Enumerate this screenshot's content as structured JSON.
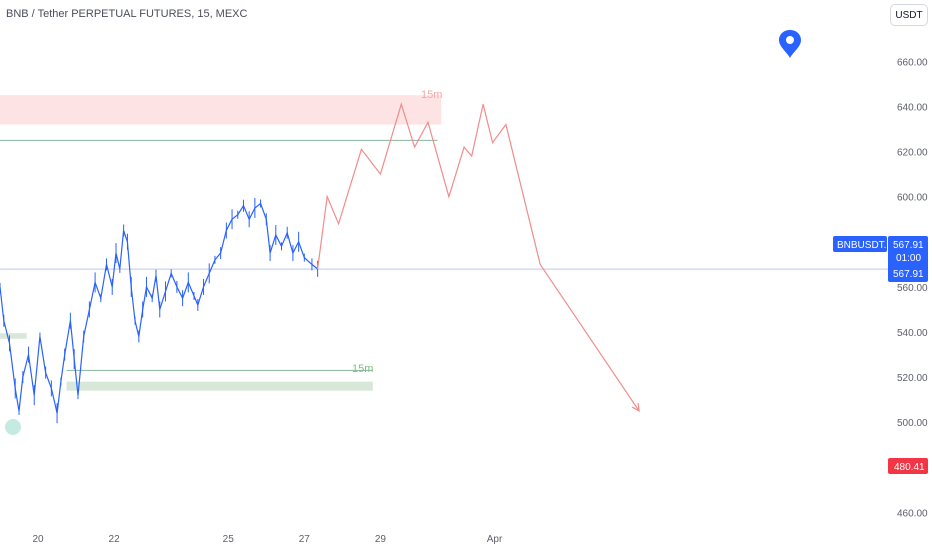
{
  "header": {
    "title": "BNB / Tether PERPETUAL FUTURES, 15, MEXC",
    "currency_button": "USDT"
  },
  "price_tag": {
    "symbol": "BNBUSDT.P",
    "price": "567.91",
    "countdown": "01:00",
    "price_repeat": "567.91",
    "color": "#2962ff"
  },
  "target_tag": {
    "price": "480.41",
    "color": "#f23645"
  },
  "zones": {
    "red_label": "15m",
    "green_label": "15m"
  },
  "chart_data": {
    "type": "line",
    "symbol": "BNBUSDT.P",
    "timeframe": "15",
    "exchange": "MEXC",
    "y_axis": {
      "ticks": [
        460,
        480,
        500,
        520,
        540,
        560,
        580,
        600,
        620,
        640,
        660
      ],
      "tick_labels": [
        "460.00",
        "480.00",
        "500.00",
        "520.00",
        "540.00",
        "560.00",
        "580.00",
        "600.00",
        "620.00",
        "640.00",
        "660.00"
      ],
      "range": [
        450,
        685
      ]
    },
    "x_axis": {
      "ticks": [
        {
          "label": "20",
          "day": 20
        },
        {
          "label": "22",
          "day": 22
        },
        {
          "label": "25",
          "day": 25
        },
        {
          "label": "27",
          "day": 27
        },
        {
          "label": "29",
          "day": 29
        },
        {
          "label": "Apr",
          "day": 32
        }
      ],
      "range": [
        19,
        43.5
      ]
    },
    "price_series": {
      "name": "BNBUSDT.P",
      "color": "#2962ff",
      "points": [
        [
          19.0,
          560
        ],
        [
          19.1,
          545
        ],
        [
          19.25,
          535
        ],
        [
          19.4,
          515
        ],
        [
          19.5,
          505
        ],
        [
          19.6,
          520
        ],
        [
          19.75,
          530
        ],
        [
          19.9,
          512
        ],
        [
          20.05,
          538
        ],
        [
          20.2,
          522
        ],
        [
          20.35,
          515
        ],
        [
          20.5,
          504
        ],
        [
          20.6,
          518
        ],
        [
          20.7,
          530
        ],
        [
          20.85,
          545
        ],
        [
          20.95,
          528
        ],
        [
          21.05,
          512
        ],
        [
          21.2,
          538
        ],
        [
          21.35,
          550
        ],
        [
          21.5,
          562
        ],
        [
          21.65,
          555
        ],
        [
          21.8,
          570
        ],
        [
          21.95,
          560
        ],
        [
          22.05,
          575
        ],
        [
          22.15,
          568
        ],
        [
          22.25,
          585
        ],
        [
          22.35,
          580
        ],
        [
          22.45,
          560
        ],
        [
          22.55,
          545
        ],
        [
          22.65,
          538
        ],
        [
          22.75,
          550
        ],
        [
          22.85,
          560
        ],
        [
          23.0,
          555
        ],
        [
          23.1,
          565
        ],
        [
          23.2,
          550
        ],
        [
          23.35,
          558
        ],
        [
          23.5,
          566
        ],
        [
          23.65,
          560
        ],
        [
          23.8,
          555
        ],
        [
          23.95,
          562
        ],
        [
          24.1,
          556
        ],
        [
          24.2,
          552
        ],
        [
          24.35,
          560
        ],
        [
          24.5,
          566
        ],
        [
          24.65,
          572
        ],
        [
          24.8,
          575
        ],
        [
          24.95,
          585
        ],
        [
          25.1,
          590
        ],
        [
          25.25,
          592
        ],
        [
          25.4,
          596
        ],
        [
          25.55,
          590
        ],
        [
          25.7,
          595
        ],
        [
          25.85,
          597
        ],
        [
          26.0,
          590
        ],
        [
          26.1,
          575
        ],
        [
          26.25,
          583
        ],
        [
          26.4,
          578
        ],
        [
          26.55,
          584
        ],
        [
          26.7,
          575
        ],
        [
          26.85,
          580
        ],
        [
          27.0,
          573
        ],
        [
          27.2,
          570
        ],
        [
          27.35,
          568
        ]
      ]
    },
    "projection": {
      "color": "#f28b8b",
      "points": [
        [
          27.35,
          568
        ],
        [
          27.6,
          600
        ],
        [
          27.9,
          588
        ],
        [
          28.5,
          621
        ],
        [
          29.0,
          610
        ],
        [
          29.55,
          641
        ],
        [
          29.9,
          622
        ],
        [
          30.25,
          633
        ],
        [
          30.8,
          600
        ],
        [
          31.2,
          622
        ],
        [
          31.4,
          618
        ],
        [
          31.7,
          641
        ],
        [
          31.95,
          624
        ],
        [
          32.3,
          632
        ],
        [
          33.2,
          570
        ],
        [
          35.8,
          505
        ]
      ]
    },
    "zones": [
      {
        "label": "15m",
        "y_range": [
          632,
          645
        ],
        "x_range": [
          19.0,
          30.6
        ],
        "color": "#fde3e3"
      },
      {
        "label": "15m",
        "y_range": [
          514,
          518
        ],
        "x_range": [
          20.75,
          28.8
        ],
        "color": "#d7e8d8"
      },
      {
        "label": "",
        "y_range": [
          537,
          539.5
        ],
        "x_range": [
          19.0,
          19.7
        ],
        "color": "#d7e8d8"
      }
    ],
    "lines": [
      {
        "y": 625,
        "x_range": [
          19.0,
          30.5
        ],
        "color": "#84b89a"
      },
      {
        "y": 523,
        "x_range": [
          20.75,
          28.8
        ],
        "color": "#84b89a"
      },
      {
        "y": 567.91,
        "x_range": [
          19.0,
          43.5
        ],
        "color": "#b8c9ef"
      }
    ],
    "current_price": 567.91,
    "target_price": 480.41
  }
}
